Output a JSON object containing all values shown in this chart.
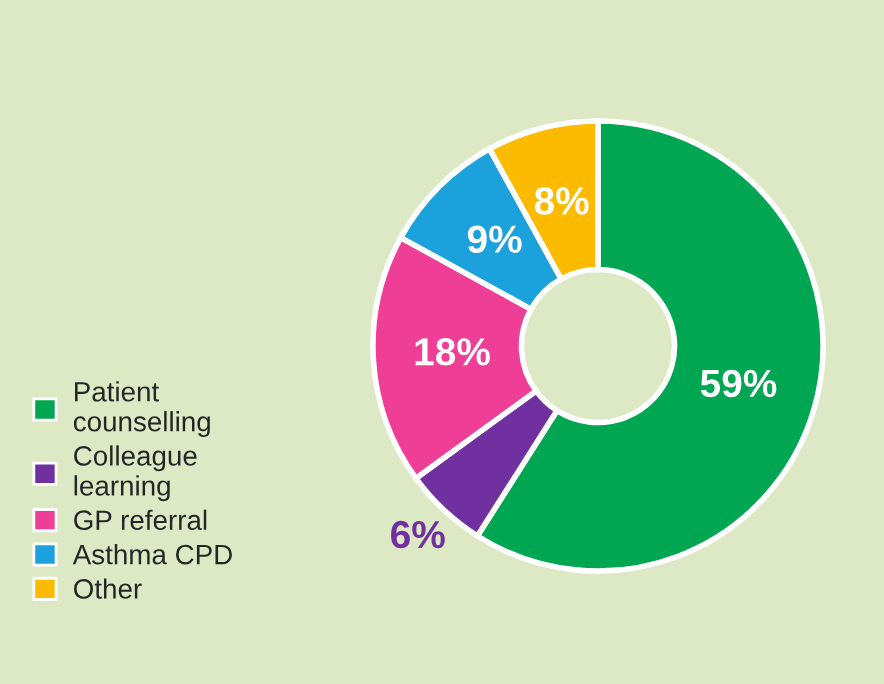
{
  "chart_data": {
    "type": "donut",
    "categories": [
      "Patient\ncounselling",
      "Colleague\nlearning",
      "GP referral",
      "Asthma CPD",
      "Other"
    ],
    "values": [
      59,
      6,
      18,
      9,
      8
    ],
    "colors": [
      "#00a651",
      "#7030a0",
      "#ef3e96",
      "#1ba1dc",
      "#fcba00"
    ],
    "value_labels": [
      "59%",
      "6%",
      "18%",
      "9%",
      "8%"
    ],
    "legend": "bottom left"
  }
}
